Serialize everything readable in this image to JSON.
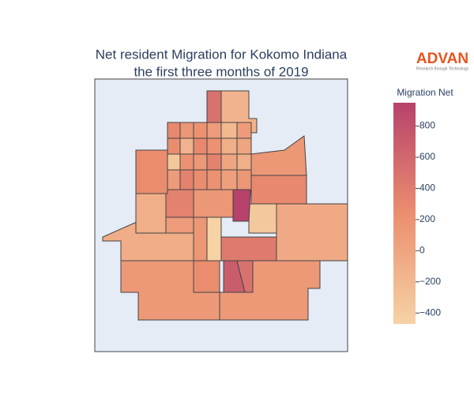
{
  "chart_data": {
    "type": "choropleth",
    "title": [
      "Net resident Migration for Kokomo Indiana",
      "the first three months of 2019"
    ],
    "logo": {
      "name": "ADVAN",
      "tagline": "Research through Technology"
    },
    "values": [
      120,
      120,
      250,
      700,
      500,
      -80,
      -50,
      420,
      -370,
      -470,
      150,
      100,
      -100,
      350,
      950,
      300,
      150,
      250,
      150,
      500,
      -150,
      300,
      150,
      200,
      100,
      -200,
      100,
      250,
      -150,
      300,
      200,
      -100,
      0,
      -350,
      200,
      150,
      350,
      0,
      -100,
      100,
      350,
      250,
      200,
      50,
      150
    ],
    "colorbar": {
      "title": "Migration Net",
      "range": [
        -470,
        950
      ],
      "colors": [
        "#f6d2a5",
        "#eb8e6f",
        "#b7426b"
      ],
      "ticks": [
        {
          "value": -400,
          "label": "−400"
        },
        {
          "value": -200,
          "label": "−200"
        },
        0,
        200,
        400,
        600,
        800
      ]
    }
  }
}
